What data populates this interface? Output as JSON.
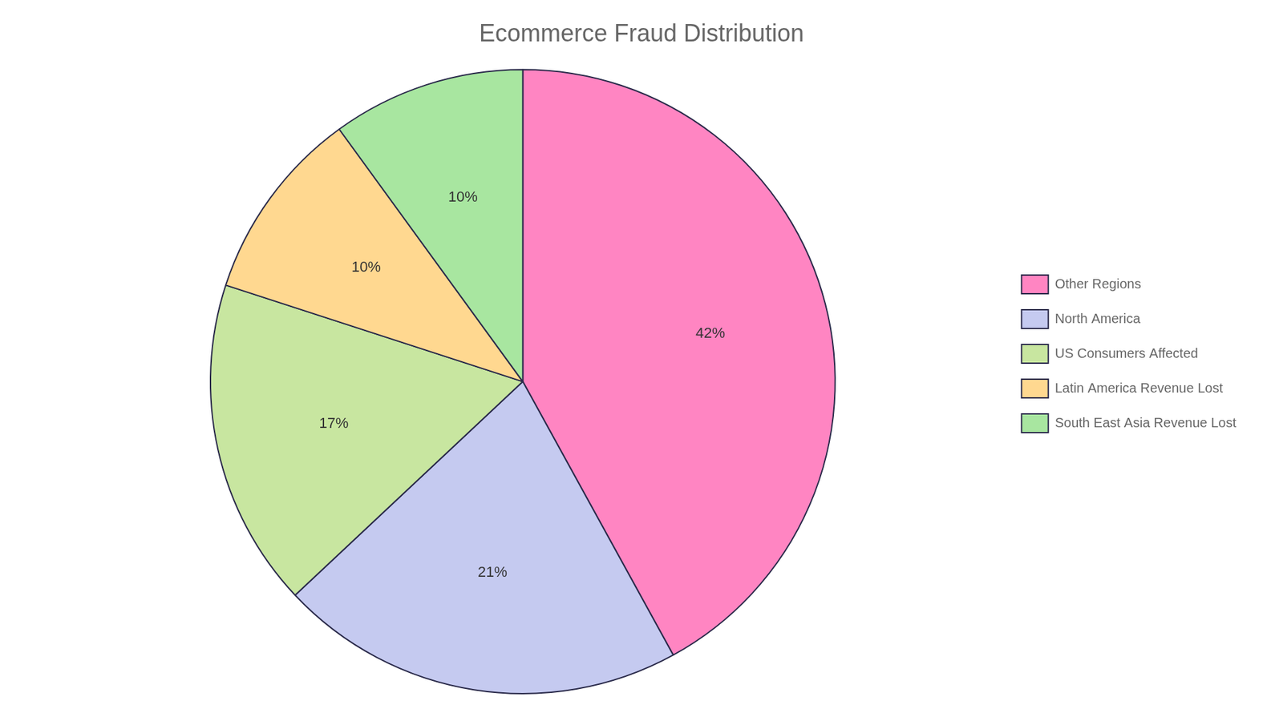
{
  "chart_data": {
    "type": "pie",
    "title": "Ecommerce Fraud Distribution",
    "categories": [
      "Other Regions",
      "North America",
      "US Consumers Affected",
      "Latin America Revenue Lost",
      "South East Asia Revenue Lost"
    ],
    "values": [
      42,
      21,
      17,
      10,
      10
    ],
    "value_labels": [
      "42%",
      "21%",
      "17%",
      "10%",
      "10%"
    ],
    "colors": [
      "#FF85C2",
      "#C5CAF0",
      "#C8E6A0",
      "#FFD890",
      "#A8E6A0"
    ],
    "legend": "right",
    "data_labels": true
  }
}
